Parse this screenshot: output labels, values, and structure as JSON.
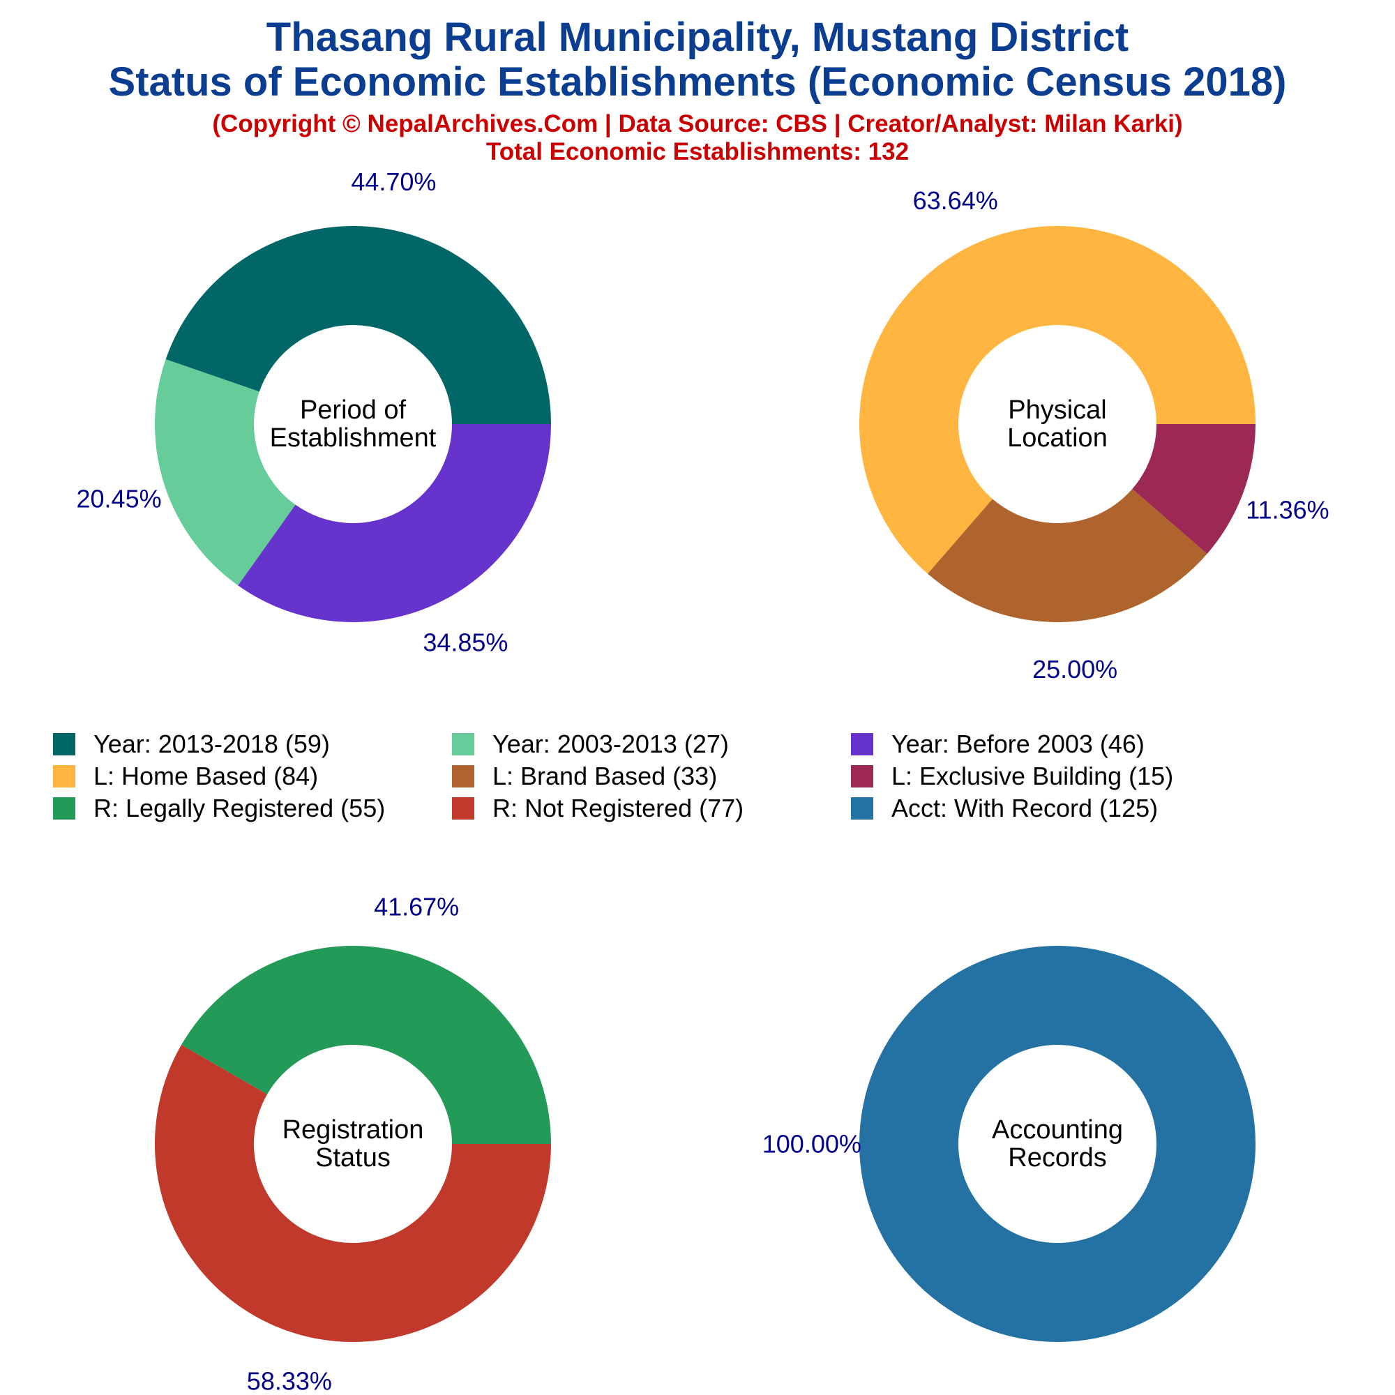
{
  "header": {
    "title_line1": "Thasang Rural Municipality, Mustang District",
    "title_line2": "Status of Economic Establishments (Economic Census 2018)",
    "copyright_line": "(Copyright © NepalArchives.Com | Data Source: CBS | Creator/Analyst: Milan Karki)",
    "total_line": "Total Economic Establishments: 132"
  },
  "legend": {
    "items": [
      {
        "label": "Year: 2013-2018 (59)",
        "color": "#006666"
      },
      {
        "label": "Year: 2003-2013 (27)",
        "color": "#66cc99"
      },
      {
        "label": "Year: Before 2003 (46)",
        "color": "#6633cc"
      },
      {
        "label": "L: Home Based (84)",
        "color": "#ffb540"
      },
      {
        "label": "L: Brand Based (33)",
        "color": "#b0642d"
      },
      {
        "label": "L: Exclusive Building (15)",
        "color": "#9c2955"
      },
      {
        "label": "R: Legally Registered (55)",
        "color": "#239a57"
      },
      {
        "label": "R: Not Registered (77)",
        "color": "#c0392b"
      },
      {
        "label": "Acct: With Record (125)",
        "color": "#2471a3"
      }
    ]
  },
  "chart_data": [
    {
      "type": "pie",
      "center_label": [
        "Period of",
        "Establishment"
      ],
      "slices": [
        {
          "name": "Year: 2013-2018",
          "value": 59,
          "percent_label": "44.70%",
          "color": "#006666"
        },
        {
          "name": "Year: 2003-2013",
          "value": 27,
          "percent_label": "20.45%",
          "color": "#66cc99"
        },
        {
          "name": "Year: Before 2003",
          "value": 46,
          "percent_label": "34.85%",
          "color": "#6633cc"
        }
      ]
    },
    {
      "type": "pie",
      "center_label": [
        "Physical",
        "Location"
      ],
      "slices": [
        {
          "name": "L: Home Based",
          "value": 84,
          "percent_label": "63.64%",
          "color": "#ffb540"
        },
        {
          "name": "L: Brand Based",
          "value": 33,
          "percent_label": "25.00%",
          "color": "#b0642d"
        },
        {
          "name": "L: Exclusive Building",
          "value": 15,
          "percent_label": "11.36%",
          "color": "#9c2955"
        }
      ]
    },
    {
      "type": "pie",
      "center_label": [
        "Registration",
        "Status"
      ],
      "slices": [
        {
          "name": "R: Legally Registered",
          "value": 55,
          "percent_label": "41.67%",
          "color": "#239a57"
        },
        {
          "name": "R: Not Registered",
          "value": 77,
          "percent_label": "58.33%",
          "color": "#c0392b"
        }
      ]
    },
    {
      "type": "pie",
      "center_label": [
        "Accounting",
        "Records"
      ],
      "slices": [
        {
          "name": "Acct: With Record",
          "value": 125,
          "percent_label": "100.00%",
          "color": "#2471a3"
        }
      ]
    }
  ]
}
